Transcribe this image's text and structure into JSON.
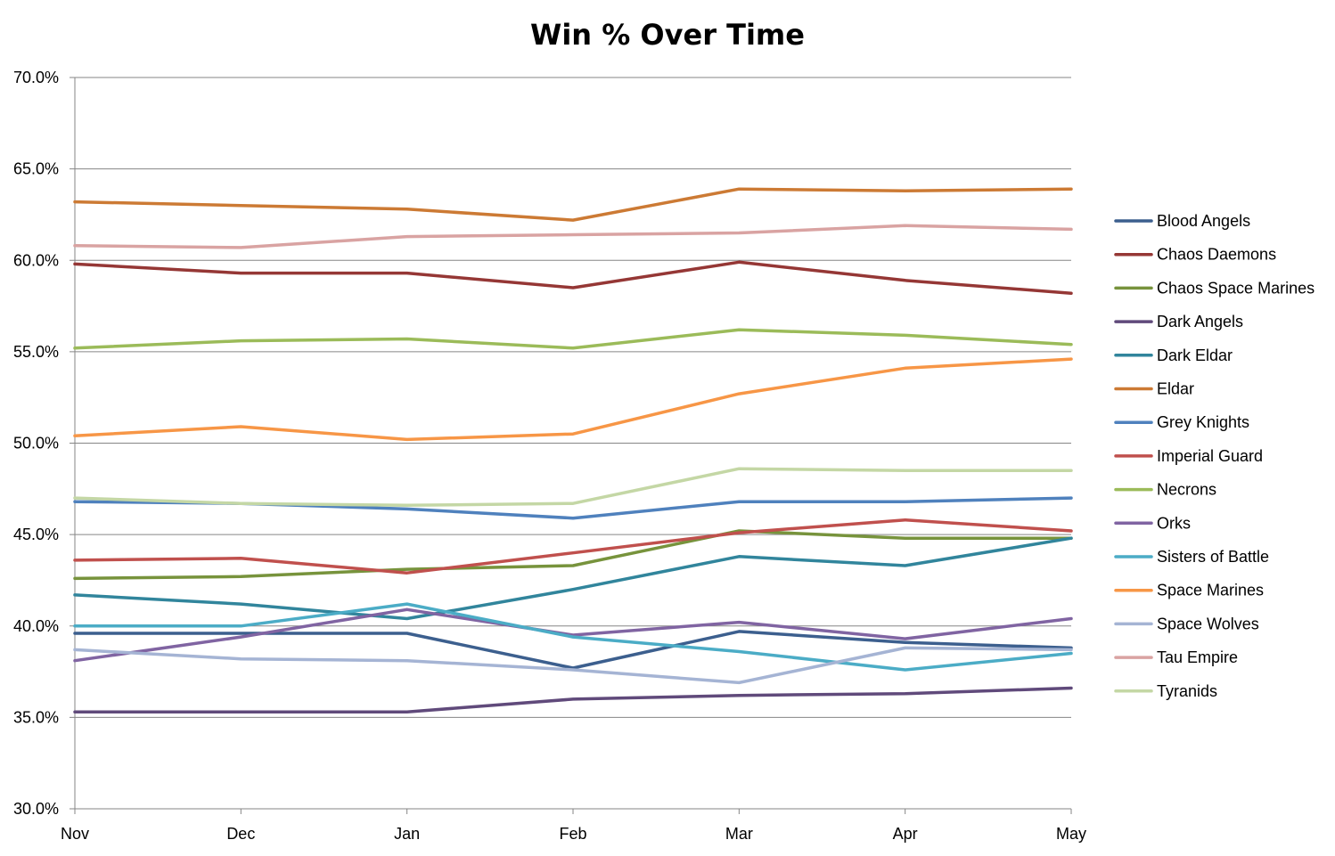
{
  "chart_data": {
    "type": "line",
    "title": "Win % Over Time",
    "xlabel": "",
    "ylabel": "",
    "categories": [
      "Nov",
      "Dec",
      "Jan",
      "Feb",
      "Mar",
      "Apr",
      "May"
    ],
    "ylim": [
      30.0,
      70.0
    ],
    "yticks": [
      30.0,
      35.0,
      40.0,
      45.0,
      50.0,
      55.0,
      60.0,
      65.0,
      70.0
    ],
    "ytick_labels": [
      "30.0%",
      "35.0%",
      "40.0%",
      "45.0%",
      "50.0%",
      "55.0%",
      "60.0%",
      "65.0%",
      "70.0%"
    ],
    "grid": true,
    "legend_position": "right",
    "series": [
      {
        "name": "Blood Angels",
        "color": "#3c5f8e",
        "values": [
          39.6,
          39.6,
          39.6,
          37.7,
          39.7,
          39.1,
          38.8
        ]
      },
      {
        "name": "Chaos Daemons",
        "color": "#953735",
        "values": [
          59.8,
          59.3,
          59.3,
          58.5,
          59.9,
          58.9,
          58.2
        ]
      },
      {
        "name": "Chaos Space Marines",
        "color": "#77933c",
        "values": [
          42.6,
          42.7,
          43.1,
          43.3,
          45.2,
          44.8,
          44.8
        ]
      },
      {
        "name": "Dark Angels",
        "color": "#604a7b",
        "values": [
          35.3,
          35.3,
          35.3,
          36.0,
          36.2,
          36.3,
          36.6
        ]
      },
      {
        "name": "Dark Eldar",
        "color": "#31859c",
        "values": [
          41.7,
          41.2,
          40.4,
          42.0,
          43.8,
          43.3,
          44.8
        ]
      },
      {
        "name": "Eldar",
        "color": "#cc7a34",
        "values": [
          63.2,
          63.0,
          62.8,
          62.2,
          63.9,
          63.8,
          63.9
        ]
      },
      {
        "name": "Grey Knights",
        "color": "#4f81bd",
        "values": [
          46.8,
          46.7,
          46.4,
          45.9,
          46.8,
          46.8,
          47.0
        ]
      },
      {
        "name": "Imperial Guard",
        "color": "#c0504d",
        "values": [
          43.6,
          43.7,
          42.9,
          44.0,
          45.1,
          45.8,
          45.2
        ]
      },
      {
        "name": "Necrons",
        "color": "#9bbb59",
        "values": [
          55.2,
          55.6,
          55.7,
          55.2,
          56.2,
          55.9,
          55.4
        ]
      },
      {
        "name": "Orks",
        "color": "#8064a2",
        "values": [
          38.1,
          39.4,
          40.9,
          39.5,
          40.2,
          39.3,
          40.4
        ]
      },
      {
        "name": "Sisters of Battle",
        "color": "#4bacc6",
        "values": [
          40.0,
          40.0,
          41.2,
          39.4,
          38.6,
          37.6,
          38.5
        ]
      },
      {
        "name": "Space Marines",
        "color": "#f79646",
        "values": [
          50.4,
          50.9,
          50.2,
          50.5,
          52.7,
          54.1,
          54.6
        ]
      },
      {
        "name": "Space Wolves",
        "color": "#a5b4d4",
        "values": [
          38.7,
          38.2,
          38.1,
          37.6,
          36.9,
          38.8,
          38.7
        ]
      },
      {
        "name": "Tau Empire",
        "color": "#d9a3a2",
        "values": [
          60.8,
          60.7,
          61.3,
          61.4,
          61.5,
          61.9,
          61.7
        ]
      },
      {
        "name": "Tyranids",
        "color": "#c4d7a5",
        "values": [
          47.0,
          46.7,
          46.6,
          46.7,
          48.6,
          48.5,
          48.5
        ]
      }
    ]
  }
}
